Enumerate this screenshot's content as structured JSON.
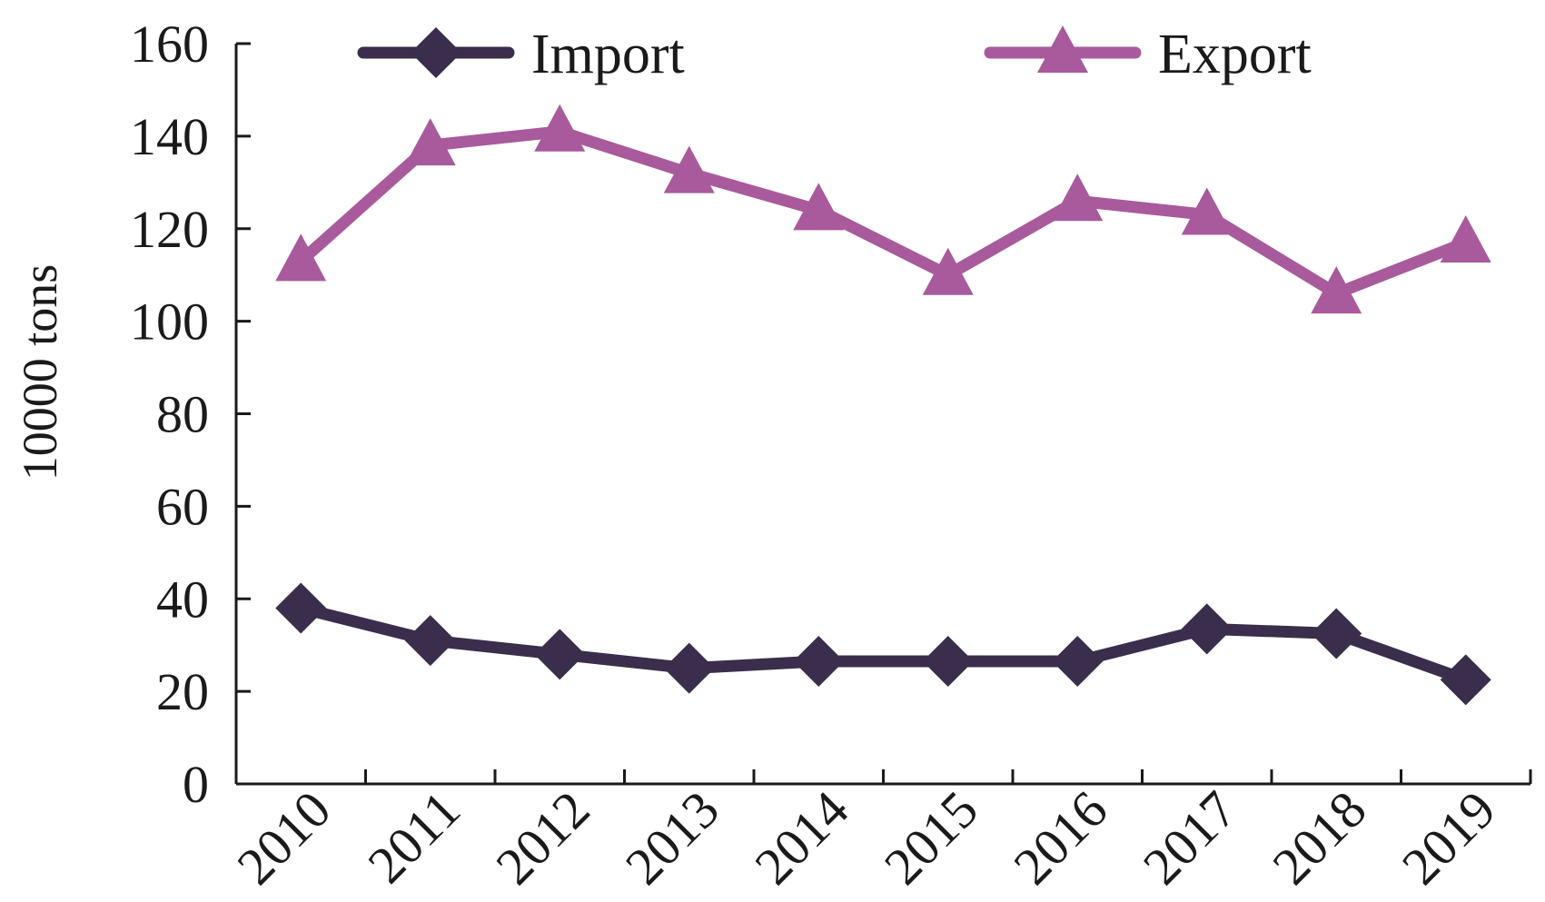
{
  "chart_data": {
    "type": "line",
    "categories": [
      "2010",
      "2011",
      "2012",
      "2013",
      "2014",
      "2015",
      "2016",
      "2017",
      "2018",
      "2019"
    ],
    "series": [
      {
        "name": "Import",
        "color": "#3b2d4c",
        "marker": "diamond",
        "values": [
          38,
          31,
          28,
          25,
          26.5,
          26.5,
          26.5,
          33.5,
          32.5,
          22.5
        ]
      },
      {
        "name": "Export",
        "color": "#a85a9c",
        "marker": "triangle",
        "values": [
          113,
          138,
          141,
          132,
          124,
          110,
          126,
          123,
          106,
          117
        ]
      }
    ],
    "xlabel": "",
    "ylabel": "10000 tons",
    "ylim": [
      0,
      160
    ],
    "yticks": [
      0,
      20,
      40,
      60,
      80,
      100,
      120,
      140,
      160
    ],
    "grid": false,
    "legend_position": "top"
  }
}
